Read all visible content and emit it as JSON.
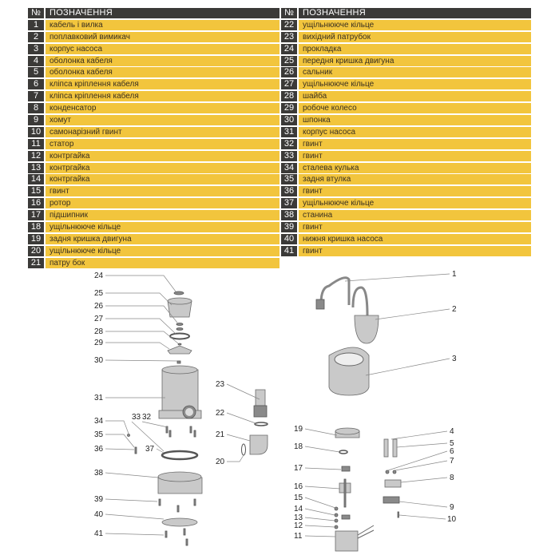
{
  "table_left": {
    "header": {
      "num": "№",
      "name": "ПОЗНАЧЕННЯ"
    },
    "rows": [
      {
        "num": "1",
        "name": "кабель і вилка"
      },
      {
        "num": "2",
        "name": "поплавковий вимикач"
      },
      {
        "num": "3",
        "name": "корпус насоса"
      },
      {
        "num": "4",
        "name": "оболонка кабеля"
      },
      {
        "num": "5",
        "name": "оболонка кабеля"
      },
      {
        "num": "6",
        "name": "кліпса кріплення кабеля"
      },
      {
        "num": "7",
        "name": "кліпса кріплення кабеля"
      },
      {
        "num": "8",
        "name": "конденсатор"
      },
      {
        "num": "9",
        "name": "хомут"
      },
      {
        "num": "10",
        "name": "самонарізний гвинт"
      },
      {
        "num": "11",
        "name": "статор"
      },
      {
        "num": "12",
        "name": "контргайка"
      },
      {
        "num": "13",
        "name": "контргайка"
      },
      {
        "num": "14",
        "name": "контргайка"
      },
      {
        "num": "15",
        "name": "гвинт"
      },
      {
        "num": "16",
        "name": "ротор"
      },
      {
        "num": "17",
        "name": "підшипник"
      },
      {
        "num": "18",
        "name": "ущільнююче кільце"
      },
      {
        "num": "19",
        "name": "задня кришка двигуна"
      },
      {
        "num": "20",
        "name": "ущільнююче кільце"
      },
      {
        "num": "21",
        "name": "патру бок"
      }
    ]
  },
  "table_right": {
    "header": {
      "num": "№",
      "name": "ПОЗНАЧЕННЯ"
    },
    "rows": [
      {
        "num": "22",
        "name": "ущільнююче кільце"
      },
      {
        "num": "23",
        "name": "вихідний патрубок"
      },
      {
        "num": "24",
        "name": "прокладка"
      },
      {
        "num": "25",
        "name": "передня кришка двигуна"
      },
      {
        "num": "26",
        "name": "сальник"
      },
      {
        "num": "27",
        "name": "ущільнююче кільце"
      },
      {
        "num": "28",
        "name": "шайба"
      },
      {
        "num": "29",
        "name": "робоче колесо"
      },
      {
        "num": "30",
        "name": "шпонка"
      },
      {
        "num": "31",
        "name": "корпус насоса"
      },
      {
        "num": "32",
        "name": "гвинт"
      },
      {
        "num": "33",
        "name": "гвинт"
      },
      {
        "num": "34",
        "name": "сталева кулька"
      },
      {
        "num": "35",
        "name": "задня втулка"
      },
      {
        "num": "36",
        "name": "гвинт"
      },
      {
        "num": "37",
        "name": "ущільнююче кільце"
      },
      {
        "num": "38",
        "name": "станина"
      },
      {
        "num": "39",
        "name": "гвинт"
      },
      {
        "num": "40",
        "name": "нижня кришка насоса"
      },
      {
        "num": "41",
        "name": "гвинт"
      }
    ]
  },
  "diagram": {
    "callouts": [
      "1",
      "2",
      "3",
      "4",
      "5",
      "6",
      "7",
      "8",
      "9",
      "10",
      "11",
      "12",
      "13",
      "14",
      "15",
      "16",
      "17",
      "18",
      "19",
      "20",
      "21",
      "22",
      "23",
      "24",
      "25",
      "26",
      "27",
      "28",
      "29",
      "30",
      "31",
      "32",
      "33",
      "34",
      "35",
      "36",
      "37",
      "38",
      "39",
      "40",
      "41"
    ]
  },
  "colors": {
    "header_bg": "#3b3a38",
    "row_bg": "#f2c53d",
    "number_bg": "#3b3a38"
  }
}
